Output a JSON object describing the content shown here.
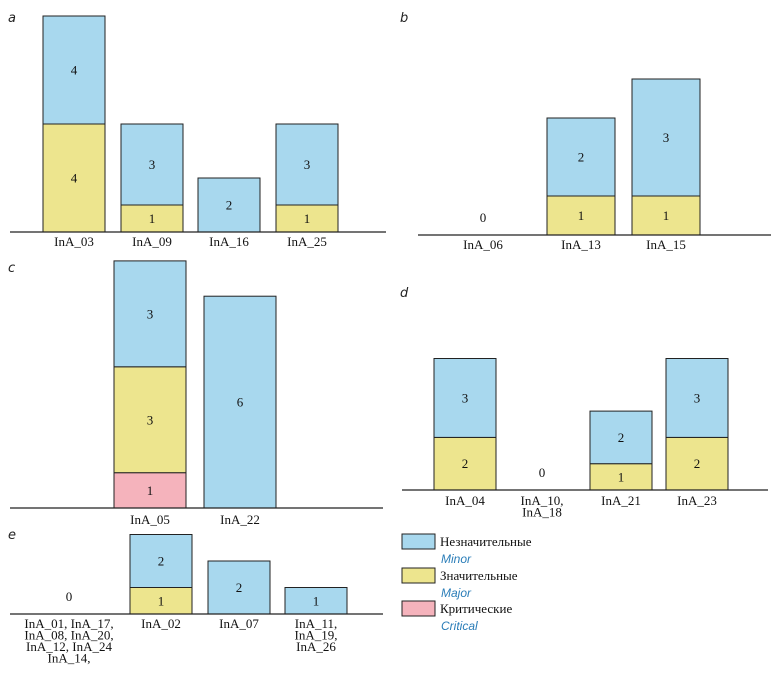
{
  "colors": {
    "minor": "#a8d8ee",
    "major": "#ede58e",
    "critical": "#f5b3bc",
    "outline": "#222222"
  },
  "legend": [
    {
      "key": "minor",
      "label_ru": "Незначительные",
      "label_en": "Minor"
    },
    {
      "key": "major",
      "label_ru": "Значительные",
      "label_en": "Major"
    },
    {
      "key": "critical",
      "label_ru": "Критические",
      "label_en": "Critical"
    }
  ],
  "chart_data": [
    {
      "panel": "a",
      "type": "bar",
      "stacked": true,
      "categories": [
        [
          "InA_03"
        ],
        [
          "InA_09"
        ],
        [
          "InA_16"
        ],
        [
          "InA_25"
        ]
      ],
      "series": [
        {
          "key": "critical",
          "values": [
            0,
            0,
            0,
            0
          ]
        },
        {
          "key": "major",
          "values": [
            4,
            1,
            0,
            1
          ]
        },
        {
          "key": "minor",
          "values": [
            4,
            3,
            2,
            3
          ]
        }
      ]
    },
    {
      "panel": "b",
      "type": "bar",
      "stacked": true,
      "categories": [
        [
          "InA_06"
        ],
        [
          "InA_13"
        ],
        [
          "InA_15"
        ]
      ],
      "series": [
        {
          "key": "critical",
          "values": [
            0,
            0,
            0
          ]
        },
        {
          "key": "major",
          "values": [
            0,
            1,
            1
          ]
        },
        {
          "key": "minor",
          "values": [
            0,
            2,
            3
          ]
        }
      ]
    },
    {
      "panel": "c",
      "type": "bar",
      "stacked": true,
      "categories": [
        [
          "InA_05"
        ],
        [
          "InA_22"
        ]
      ],
      "series": [
        {
          "key": "critical",
          "values": [
            1,
            0
          ]
        },
        {
          "key": "major",
          "values": [
            3,
            0
          ]
        },
        {
          "key": "minor",
          "values": [
            3,
            6
          ]
        }
      ]
    },
    {
      "panel": "d",
      "type": "bar",
      "stacked": true,
      "categories": [
        [
          "InA_04"
        ],
        [
          "InA_10,",
          "InA_18"
        ],
        [
          "InA_21"
        ],
        [
          "InA_23"
        ]
      ],
      "series": [
        {
          "key": "critical",
          "values": [
            0,
            0,
            0,
            0
          ]
        },
        {
          "key": "major",
          "values": [
            2,
            0,
            1,
            2
          ]
        },
        {
          "key": "minor",
          "values": [
            3,
            0,
            2,
            3
          ]
        }
      ]
    },
    {
      "panel": "e",
      "type": "bar",
      "stacked": true,
      "categories": [
        [
          "InA_01, InA_17,",
          "InA_08, InA_20,",
          "InA_12, InA_24",
          "InA_14,"
        ],
        [
          "InA_02"
        ],
        [
          "InA_07"
        ],
        [
          "InA_11,",
          "InA_19,",
          "InA_26"
        ]
      ],
      "series": [
        {
          "key": "critical",
          "values": [
            0,
            0,
            0,
            0
          ]
        },
        {
          "key": "major",
          "values": [
            0,
            1,
            0,
            0
          ]
        },
        {
          "key": "minor",
          "values": [
            0,
            2,
            2,
            1
          ]
        }
      ]
    }
  ]
}
